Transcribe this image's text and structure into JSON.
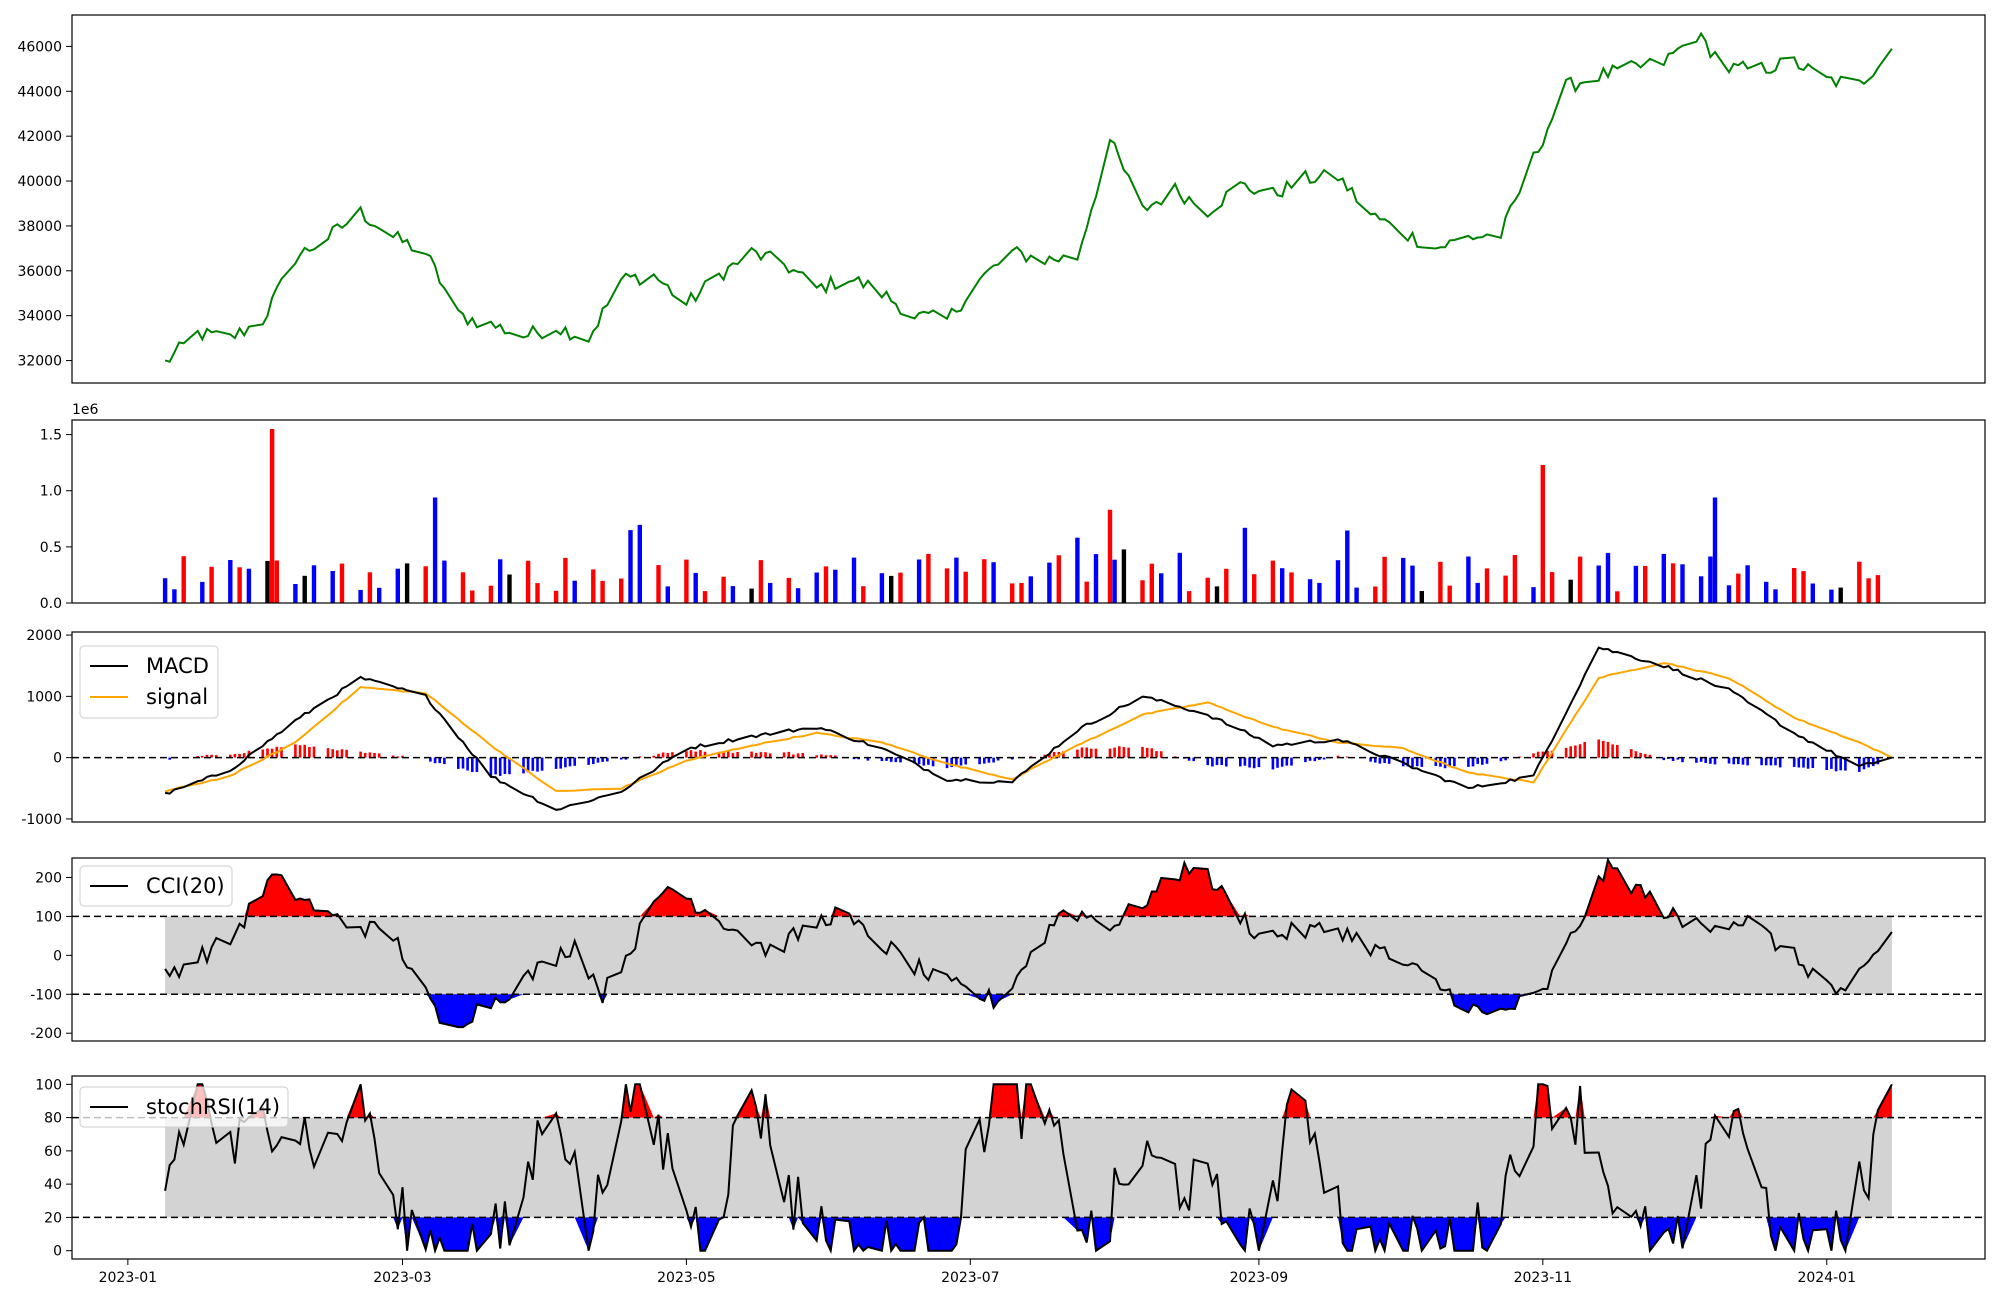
{
  "chart_data": [
    {
      "panel": "price",
      "type": "line",
      "title": "",
      "xlabel": "",
      "ylabel": "",
      "ylim": [
        31000,
        47400
      ],
      "yticks": [
        32000,
        34000,
        36000,
        38000,
        40000,
        42000,
        44000,
        46000
      ],
      "grid": false,
      "legend": "none",
      "color": "#008000",
      "series": [
        {
          "x": [
            "2023-01-09",
            "2023-01-16",
            "2023-01-23",
            "2023-01-30",
            "2023-02-06",
            "2023-02-13",
            "2023-02-20",
            "2023-02-27",
            "2023-03-06",
            "2023-03-13",
            "2023-03-20",
            "2023-03-27",
            "2023-04-03",
            "2023-04-10",
            "2023-04-17",
            "2023-04-24",
            "2023-05-01",
            "2023-05-08",
            "2023-05-15",
            "2023-05-22",
            "2023-05-29",
            "2023-06-05",
            "2023-06-12",
            "2023-06-19",
            "2023-06-26",
            "2023-07-03",
            "2023-07-10",
            "2023-07-17",
            "2023-07-24",
            "2023-07-31",
            "2023-08-07",
            "2023-08-14",
            "2023-08-21",
            "2023-08-28",
            "2023-09-04",
            "2023-09-11",
            "2023-09-18",
            "2023-09-25",
            "2023-10-02",
            "2023-10-09",
            "2023-10-16",
            "2023-10-23",
            "2023-10-30",
            "2023-11-06",
            "2023-11-13",
            "2023-11-20",
            "2023-11-27",
            "2023-12-04",
            "2023-12-11",
            "2023-12-18",
            "2023-12-25",
            "2024-01-01",
            "2024-01-08",
            "2024-01-15"
          ],
          "values": [
            31900,
            33200,
            33000,
            33800,
            36600,
            37500,
            38600,
            37500,
            36800,
            34000,
            33600,
            33100,
            33500,
            33000,
            35600,
            35800,
            34500,
            35800,
            36800,
            36300,
            35200,
            35700,
            35000,
            34000,
            33800,
            35600,
            36800,
            36500,
            36600,
            41800,
            38700,
            39600,
            38700,
            39800,
            39400,
            40100,
            40200,
            38500,
            37700,
            37000,
            37500,
            37600,
            41000,
            44200,
            44700,
            45000,
            45300,
            46500,
            45000,
            45000,
            45300,
            44500,
            44300,
            45900
          ]
        }
      ]
    },
    {
      "panel": "volume",
      "type": "bar",
      "title": "",
      "ylabel": "",
      "exponent_label": "1e6",
      "ylim": [
        0,
        1.63
      ],
      "yticks": [
        0.0,
        0.5,
        1.0,
        1.5
      ],
      "ytick_labels": [
        "0.0",
        "0.5",
        "1.0",
        "1.5"
      ],
      "color_meaning": {
        "#ff0000": "up day",
        "#0000ff": "down day",
        "#000000": "unchanged"
      },
      "highlights": [
        {
          "x": "2023-02-01",
          "value": 1.55,
          "color": "#ff0000"
        },
        {
          "x": "2023-03-08",
          "value": 0.94,
          "color": "#0000ff"
        },
        {
          "x": "2023-07-31",
          "value": 0.83,
          "color": "#ff0000"
        },
        {
          "x": "2023-11-01",
          "value": 1.23,
          "color": "#ff0000"
        },
        {
          "x": "2023-12-08",
          "value": 0.94,
          "color": "#0000ff"
        }
      ],
      "values_typical_range": [
        0.1,
        0.6
      ]
    },
    {
      "panel": "macd",
      "type": "line",
      "ylim": [
        -1050,
        2050
      ],
      "yticks": [
        -1000,
        0,
        1000,
        2000
      ],
      "legend": "top-left",
      "reference_line": 0,
      "series": [
        {
          "name": "MACD",
          "color": "#000000",
          "x": [
            "2023-01-09",
            "2023-01-23",
            "2023-02-06",
            "2023-02-20",
            "2023-03-06",
            "2023-03-20",
            "2023-04-03",
            "2023-04-17",
            "2023-05-01",
            "2023-05-15",
            "2023-05-29",
            "2023-06-12",
            "2023-06-26",
            "2023-07-10",
            "2023-07-24",
            "2023-08-07",
            "2023-08-21",
            "2023-09-04",
            "2023-09-18",
            "2023-10-02",
            "2023-10-16",
            "2023-10-30",
            "2023-11-13",
            "2023-11-27",
            "2023-12-11",
            "2023-12-25",
            "2024-01-08",
            "2024-01-15"
          ],
          "values": [
            -600,
            -200,
            600,
            1300,
            1000,
            -300,
            -850,
            -550,
            150,
            350,
            500,
            150,
            -350,
            -400,
            450,
            1000,
            700,
            200,
            300,
            -100,
            -500,
            -300,
            1800,
            1500,
            1100,
            400,
            -150,
            0
          ]
        },
        {
          "name": "signal",
          "color": "#ffa500",
          "x": [
            "2023-01-09",
            "2023-01-23",
            "2023-02-06",
            "2023-02-20",
            "2023-03-06",
            "2023-03-20",
            "2023-04-03",
            "2023-04-17",
            "2023-05-01",
            "2023-05-15",
            "2023-05-29",
            "2023-06-12",
            "2023-06-26",
            "2023-07-10",
            "2023-07-24",
            "2023-08-07",
            "2023-08-21",
            "2023-09-04",
            "2023-09-18",
            "2023-10-02",
            "2023-10-16",
            "2023-10-30",
            "2023-11-13",
            "2023-11-27",
            "2023-12-11",
            "2023-12-25",
            "2024-01-08",
            "2024-01-15"
          ],
          "values": [
            -550,
            -300,
            250,
            1150,
            1050,
            200,
            -550,
            -500,
            -50,
            200,
            400,
            250,
            -100,
            -350,
            200,
            700,
            900,
            500,
            250,
            150,
            -250,
            -400,
            1300,
            1550,
            1300,
            650,
            250,
            0
          ]
        }
      ],
      "histogram": {
        "positive_color": "#ff0000",
        "negative_color": "#0000ff"
      }
    },
    {
      "panel": "cci",
      "type": "line",
      "ylim": [
        -220,
        250
      ],
      "yticks": [
        -200,
        -100,
        0,
        100,
        200
      ],
      "legend": "top-left",
      "reference_lines": [
        100,
        -100
      ],
      "band": [
        -100,
        100
      ],
      "series": [
        {
          "name": "CCI(20)",
          "color": "#000000",
          "x": [
            "2023-01-09",
            "2023-01-23",
            "2023-02-01",
            "2023-02-13",
            "2023-02-27",
            "2023-03-10",
            "2023-03-24",
            "2023-04-07",
            "2023-04-13",
            "2023-04-27",
            "2023-05-19",
            "2023-06-02",
            "2023-06-23",
            "2023-07-07",
            "2023-07-21",
            "2023-08-01",
            "2023-08-18",
            "2023-09-01",
            "2023-09-18",
            "2023-10-06",
            "2023-10-20",
            "2023-11-01",
            "2023-11-15",
            "2023-12-01",
            "2023-12-15",
            "2024-01-05",
            "2024-01-15"
          ],
          "values": [
            -50,
            40,
            200,
            100,
            50,
            -190,
            -90,
            30,
            -100,
            180,
            10,
            110,
            -60,
            -120,
            120,
            80,
            240,
            50,
            70,
            -50,
            -160,
            -100,
            230,
            80,
            90,
            -110,
            60
          ]
        }
      ],
      "fill_colors": {
        "above": "#ff0000",
        "below": "#0000ff",
        "band": "#d3d3d3"
      }
    },
    {
      "panel": "stochrsi",
      "type": "line",
      "ylim": [
        -5,
        105
      ],
      "yticks": [
        0,
        20,
        40,
        60,
        80,
        100
      ],
      "legend": "top-left",
      "reference_lines": [
        80,
        20
      ],
      "band": [
        20,
        80
      ],
      "series": [
        {
          "name": "stochRSI(14)",
          "color": "#000000",
          "x": [
            "2023-01-09",
            "2023-01-16",
            "2023-01-23",
            "2023-02-02",
            "2023-02-13",
            "2023-02-20",
            "2023-02-27",
            "2023-03-10",
            "2023-03-24",
            "2023-04-03",
            "2023-04-10",
            "2023-04-17",
            "2023-04-27",
            "2023-05-05",
            "2023-05-15",
            "2023-05-24",
            "2023-06-05",
            "2023-06-16",
            "2023-06-26",
            "2023-07-06",
            "2023-07-17",
            "2023-07-28",
            "2023-08-05",
            "2023-08-18",
            "2023-09-01",
            "2023-09-10",
            "2023-09-21",
            "2023-10-06",
            "2023-10-20",
            "2023-11-01",
            "2023-11-10",
            "2023-11-20",
            "2023-12-01",
            "2023-12-12",
            "2023-12-22",
            "2024-01-05",
            "2024-01-15"
          ],
          "values": [
            40,
            100,
            55,
            85,
            60,
            100,
            20,
            0,
            10,
            100,
            0,
            100,
            60,
            0,
            100,
            30,
            0,
            0,
            0,
            100,
            80,
            0,
            55,
            40,
            0,
            100,
            0,
            0,
            10,
            100,
            80,
            10,
            0,
            95,
            0,
            5,
            100
          ]
        }
      ],
      "fill_colors": {
        "above": "#ff0000",
        "below": "#0000ff",
        "band": "#d3d3d3"
      }
    }
  ],
  "x_axis": {
    "type": "date",
    "range": [
      "2022-12-20",
      "2024-02-04"
    ],
    "tick_labels": [
      "2023-01",
      "2023-03",
      "2023-05",
      "2023-07",
      "2023-09",
      "2023-11",
      "2024-01"
    ]
  },
  "legend_labels": {
    "macd": "MACD",
    "signal": "signal",
    "cci": "CCI(20)",
    "stochrsi": "stochRSI(14)"
  },
  "volume_exponent": "1e6",
  "colors": {
    "price": "#008000",
    "up": "#ff0000",
    "down": "#0000ff",
    "neutral": "#000000",
    "signal": "#ffa500",
    "band": "#d3d3d3"
  }
}
